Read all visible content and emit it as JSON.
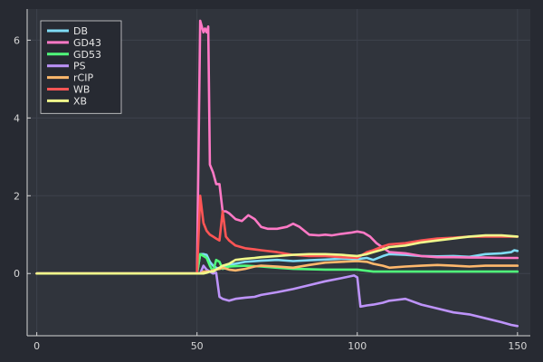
{
  "chart_data": {
    "type": "line",
    "title": "",
    "xlabel": "",
    "ylabel": "",
    "xlim": [
      -3,
      154
    ],
    "ylim": [
      -1.6,
      6.8
    ],
    "xticks": [
      0,
      50,
      100,
      150
    ],
    "yticks": [
      0,
      2,
      4,
      6
    ],
    "grid": true,
    "legend_position": "top-left",
    "colors": {
      "background": "#272a32",
      "plot_background": "#30343c",
      "axis": "#d6d6d6",
      "grid": "#3d424c",
      "legend_border": "#d6d6d6"
    },
    "series": [
      {
        "name": "DB",
        "color": "#7fdcf5",
        "x": [
          0,
          50,
          51,
          52,
          53,
          54,
          55,
          56,
          57,
          58,
          60,
          65,
          70,
          75,
          80,
          85,
          90,
          95,
          100,
          103,
          105,
          108,
          110,
          115,
          120,
          125,
          130,
          135,
          140,
          145,
          148,
          149,
          150
        ],
        "y": [
          0,
          0,
          0.5,
          0.5,
          0.48,
          0.3,
          0.2,
          0.15,
          0.12,
          0.15,
          0.22,
          0.3,
          0.33,
          0.35,
          0.32,
          0.34,
          0.36,
          0.38,
          0.37,
          0.4,
          0.35,
          0.45,
          0.5,
          0.48,
          0.45,
          0.44,
          0.45,
          0.43,
          0.5,
          0.52,
          0.55,
          0.6,
          0.58
        ]
      },
      {
        "name": "GD43",
        "color": "#ff79c6",
        "x": [
          0,
          50,
          51,
          52,
          52.5,
          53,
          53.5,
          54,
          55,
          56,
          57,
          58,
          59,
          60,
          62,
          64,
          66,
          68,
          70,
          72,
          75,
          78,
          80,
          82,
          85,
          88,
          90,
          92,
          95,
          98,
          100,
          102,
          104,
          106,
          110,
          115,
          120,
          125,
          130,
          135,
          140,
          145,
          150
        ],
        "y": [
          0,
          0,
          6.5,
          6.2,
          6.3,
          6.2,
          6.35,
          2.8,
          2.6,
          2.3,
          2.3,
          1.6,
          1.6,
          1.55,
          1.4,
          1.35,
          1.5,
          1.4,
          1.2,
          1.15,
          1.15,
          1.2,
          1.28,
          1.2,
          1.0,
          0.98,
          1.0,
          0.98,
          1.02,
          1.05,
          1.08,
          1.05,
          0.95,
          0.78,
          0.55,
          0.52,
          0.45,
          0.42,
          0.42,
          0.41,
          0.41,
          0.4,
          0.4
        ]
      },
      {
        "name": "GD53",
        "color": "#50fa7b",
        "x": [
          0,
          50,
          51,
          52,
          53,
          54,
          55,
          56,
          57,
          58,
          60,
          65,
          70,
          75,
          80,
          90,
          100,
          105,
          110,
          120,
          130,
          140,
          150
        ],
        "y": [
          0,
          0,
          0.5,
          0.45,
          0.4,
          0.2,
          0.05,
          0.35,
          0.3,
          0.12,
          0.18,
          0.2,
          0.18,
          0.15,
          0.12,
          0.1,
          0.1,
          0.05,
          0.05,
          0.05,
          0.05,
          0.05,
          0.05
        ]
      },
      {
        "name": "PS",
        "color": "#bd93f9",
        "x": [
          0,
          50,
          51,
          52,
          53,
          54,
          55,
          56,
          57,
          58,
          60,
          62,
          65,
          68,
          70,
          75,
          80,
          85,
          90,
          95,
          99,
          100,
          101,
          103,
          105,
          108,
          110,
          112,
          115,
          120,
          125,
          130,
          135,
          140,
          145,
          148,
          150
        ],
        "y": [
          0,
          0,
          0.0,
          0.2,
          0.1,
          0.05,
          0.0,
          0.02,
          -0.6,
          -0.65,
          -0.7,
          -0.65,
          -0.62,
          -0.6,
          -0.55,
          -0.48,
          -0.4,
          -0.3,
          -0.2,
          -0.12,
          -0.05,
          -0.1,
          -0.85,
          -0.82,
          -0.8,
          -0.75,
          -0.7,
          -0.68,
          -0.65,
          -0.8,
          -0.9,
          -1.0,
          -1.05,
          -1.15,
          -1.25,
          -1.32,
          -1.35
        ]
      },
      {
        "name": "rCIP",
        "color": "#ffb86c",
        "x": [
          0,
          50,
          51,
          52,
          53,
          54,
          55,
          56,
          57,
          58,
          60,
          62,
          65,
          68,
          70,
          75,
          80,
          85,
          90,
          95,
          100,
          103,
          105,
          108,
          110,
          115,
          120,
          125,
          130,
          135,
          140,
          145,
          150
        ],
        "y": [
          0,
          0,
          0,
          0.05,
          0.05,
          0.05,
          0.08,
          0.1,
          0.12,
          0.15,
          0.1,
          0.08,
          0.12,
          0.18,
          0.2,
          0.18,
          0.15,
          0.22,
          0.28,
          0.3,
          0.32,
          0.3,
          0.25,
          0.2,
          0.15,
          0.18,
          0.2,
          0.22,
          0.2,
          0.18,
          0.2,
          0.2,
          0.2
        ]
      },
      {
        "name": "WB",
        "color": "#ff5555",
        "x": [
          0,
          50,
          51,
          52,
          53,
          54,
          55,
          56,
          57,
          58,
          59,
          60,
          62,
          65,
          68,
          70,
          75,
          80,
          85,
          90,
          95,
          100,
          103,
          105,
          108,
          110,
          115,
          120,
          125,
          130,
          135,
          140,
          145,
          150
        ],
        "y": [
          0,
          0,
          2.0,
          1.3,
          1.1,
          1.0,
          0.95,
          0.9,
          0.85,
          1.6,
          0.95,
          0.85,
          0.72,
          0.65,
          0.62,
          0.6,
          0.55,
          0.48,
          0.45,
          0.45,
          0.42,
          0.4,
          0.55,
          0.6,
          0.7,
          0.75,
          0.78,
          0.85,
          0.9,
          0.92,
          0.95,
          0.95,
          0.95,
          0.95
        ]
      },
      {
        "name": "XB",
        "color": "#f1fa8c",
        "x": [
          0,
          50,
          51,
          52,
          53,
          54,
          55,
          56,
          57,
          58,
          60,
          62,
          65,
          68,
          70,
          75,
          80,
          85,
          90,
          95,
          100,
          103,
          105,
          108,
          110,
          115,
          120,
          125,
          130,
          135,
          140,
          145,
          150
        ],
        "y": [
          0,
          0,
          0.0,
          0.0,
          0.02,
          0.05,
          0.05,
          0.1,
          0.15,
          0.2,
          0.25,
          0.35,
          0.38,
          0.4,
          0.42,
          0.45,
          0.48,
          0.5,
          0.5,
          0.48,
          0.45,
          0.5,
          0.55,
          0.62,
          0.68,
          0.72,
          0.8,
          0.85,
          0.9,
          0.95,
          0.98,
          0.98,
          0.95
        ]
      }
    ]
  }
}
